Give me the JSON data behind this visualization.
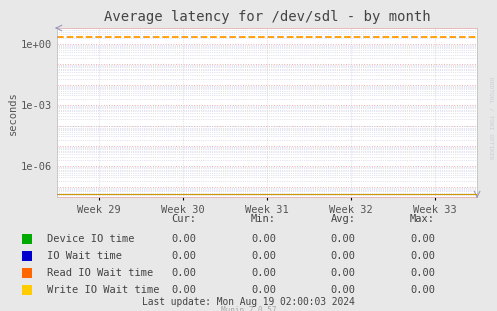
{
  "title": "Average latency for /dev/sdl - by month",
  "ylabel": "seconds",
  "background_color": "#e8e8e8",
  "plot_bg_color": "#ffffff",
  "major_grid_color": "#e8b0b0",
  "minor_grid_color": "#c8c8e0",
  "x_labels": [
    "Week 29",
    "Week 30",
    "Week 31",
    "Week 32",
    "Week 33"
  ],
  "ylim_log_min": 3e-08,
  "ylim_log_max": 6.0,
  "dashed_line_y": 2.1,
  "dashed_line_color": "#ff9900",
  "bottom_line_color": "#cc9900",
  "arrow_color": "#9999bb",
  "legend_entries": [
    {
      "label": "Device IO time",
      "color": "#00aa00"
    },
    {
      "label": "IO Wait time",
      "color": "#0000cc"
    },
    {
      "label": "Read IO Wait time",
      "color": "#ff6600"
    },
    {
      "label": "Write IO Wait time",
      "color": "#ffcc00"
    }
  ],
  "table_rows": [
    [
      "Device IO time",
      "0.00",
      "0.00",
      "0.00",
      "0.00"
    ],
    [
      "IO Wait time",
      "0.00",
      "0.00",
      "0.00",
      "0.00"
    ],
    [
      "Read IO Wait time",
      "0.00",
      "0.00",
      "0.00",
      "0.00"
    ],
    [
      "Write IO Wait time",
      "0.00",
      "0.00",
      "0.00",
      "0.00"
    ]
  ],
  "last_update": "Last update: Mon Aug 19 02:00:03 2024",
  "munin_version": "Munin 2.0.57",
  "rrdtool_label": "RRDTOOL / TOBI OETIKER",
  "title_fontsize": 10,
  "axis_fontsize": 7.5,
  "table_fontsize": 7.5
}
